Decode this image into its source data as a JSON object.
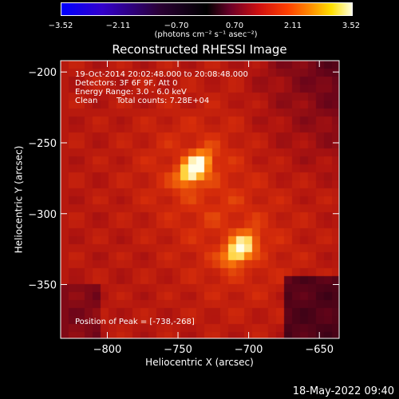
{
  "colorbar": {
    "ticks": [
      "−3.52",
      "−2.11",
      "−0.70",
      "0.70",
      "2.11",
      "3.52"
    ],
    "units": "(photons cm⁻² s⁻¹ asec⁻²)",
    "colors": [
      "#0000ff",
      "#000000",
      "#d01010",
      "#ff9000",
      "#ffffe0"
    ]
  },
  "title": "Reconstructed RHESSI Image",
  "info": {
    "line1": "19-Oct-2014 20:02:48.000 to 20:08:48.000",
    "line2": "Detectors: 3F 6F 9F, Att 0",
    "line3": "Energy Range: 3.0 - 6.0 keV",
    "line4_a": "Clean",
    "line4_b": "Total counts: 7.28E+04"
  },
  "peak": "Position of Peak = [-738,-268]",
  "axes": {
    "xlabel": "Heliocentric X (arcsec)",
    "ylabel": "Heliocentric Y (arcsec)"
  },
  "timestamp": "18-May-2022 09:40",
  "chart_data": {
    "type": "heatmap",
    "title": "Reconstructed RHESSI Image",
    "xlabel": "Heliocentric X (arcsec)",
    "ylabel": "Heliocentric Y (arcsec)",
    "xlim": [
      -833,
      -636
    ],
    "ylim": [
      -388,
      -192
    ],
    "x_ticks": [
      -800,
      -750,
      -700,
      -650
    ],
    "x_tick_labels": [
      "−800",
      "−750",
      "−700",
      "−650"
    ],
    "y_ticks": [
      -200,
      -250,
      -300,
      -350
    ],
    "y_tick_labels": [
      "−200",
      "−250",
      "−300",
      "−350"
    ],
    "colorbar_range": [
      -3.52,
      3.52
    ],
    "sources": [
      {
        "x": -738,
        "y": -268,
        "relative_intensity": 1.0
      },
      {
        "x": -706,
        "y": -325,
        "relative_intensity": 0.9
      }
    ]
  }
}
